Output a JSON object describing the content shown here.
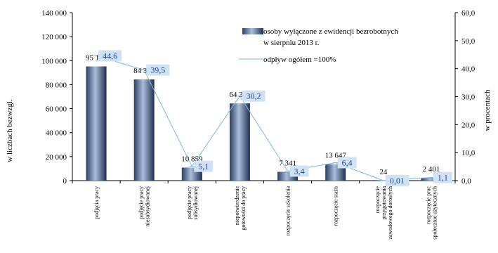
{
  "chart_data": {
    "type": "bar",
    "categories": [
      [
        "podjęcia pracy"
      ],
      [
        "podjęcie pracy",
        "niesubsydiowanej"
      ],
      [
        "podjęcie pracy",
        "subsydiowanej"
      ],
      [
        "niepotwierdzenie",
        "gotowości do pracy"
      ],
      [
        "rozpoczęcie szkolenia"
      ],
      [
        "rozpoczęcie stażu"
      ],
      [
        "rozpoczęcie",
        "przygotowania",
        "zawodowego dorosłych"
      ],
      [
        "rozpoczęcie prac",
        "społecznie użytecznych"
      ]
    ],
    "series": [
      {
        "name": "osoby wyłączone z ewidencji bezrobotnych w sierpniu 2013 r.",
        "type": "bar",
        "axis": "left",
        "values": [
          95195,
          84336,
          10859,
          64371,
          7341,
          13647,
          24,
          2401
        ],
        "labels": [
          "95 195",
          "84 336",
          "10 859",
          "64 371",
          "7 341",
          "13 647",
          "24",
          "2 401"
        ],
        "color": "#4a6aa0"
      },
      {
        "name": "odpływ ogółem =100%",
        "type": "line",
        "axis": "right",
        "values": [
          44.6,
          39.5,
          5.1,
          30.2,
          3.4,
          6.4,
          0.01,
          1.1
        ],
        "labels": [
          "44,6",
          "39,5",
          "5,1",
          "30,2",
          "3,4",
          "6,4",
          "0,01",
          "1,1"
        ],
        "color": "#7ab8e8"
      }
    ],
    "y_left": {
      "label": "w liczbach bezwzgl.",
      "range": [
        0,
        140000
      ],
      "ticks": [
        "0",
        "20 000",
        "40 000",
        "60 000",
        "80 000",
        "100 000",
        "120 000",
        "140 000"
      ]
    },
    "y_right": {
      "label": "w procentach",
      "range": [
        0,
        60
      ],
      "ticks": [
        "0,0",
        "10,0",
        "20,0",
        "30,0",
        "40,0",
        "50,0",
        "60,0"
      ]
    },
    "legend": {
      "position": "top-right",
      "bar_lines": [
        "osoby wyłączone z ewidencji bezrobotnych",
        "w sierpniu 2013 r."
      ],
      "line_text": "odpływ ogółem =100%"
    },
    "label_box_color": "#cfe3f3",
    "label_text_color": "#1f3fa6"
  }
}
